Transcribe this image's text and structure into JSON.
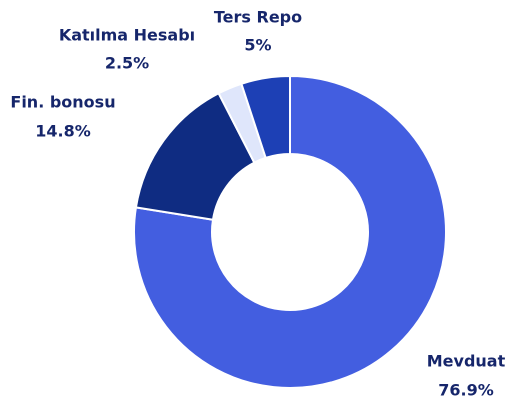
{
  "chart_data": {
    "type": "donut",
    "categories": [
      "Mevduat",
      "Fin. bonosu",
      "Katılma Hesabı",
      "Ters Repo"
    ],
    "values": [
      76.9,
      14.8,
      2.5,
      5
    ],
    "value_labels": [
      "76.9%",
      "14.8%",
      "2.5%",
      "5%"
    ],
    "colors": [
      "#435ee0",
      "#0f2c82",
      "#dfe6fb",
      "#1d40b5"
    ]
  }
}
